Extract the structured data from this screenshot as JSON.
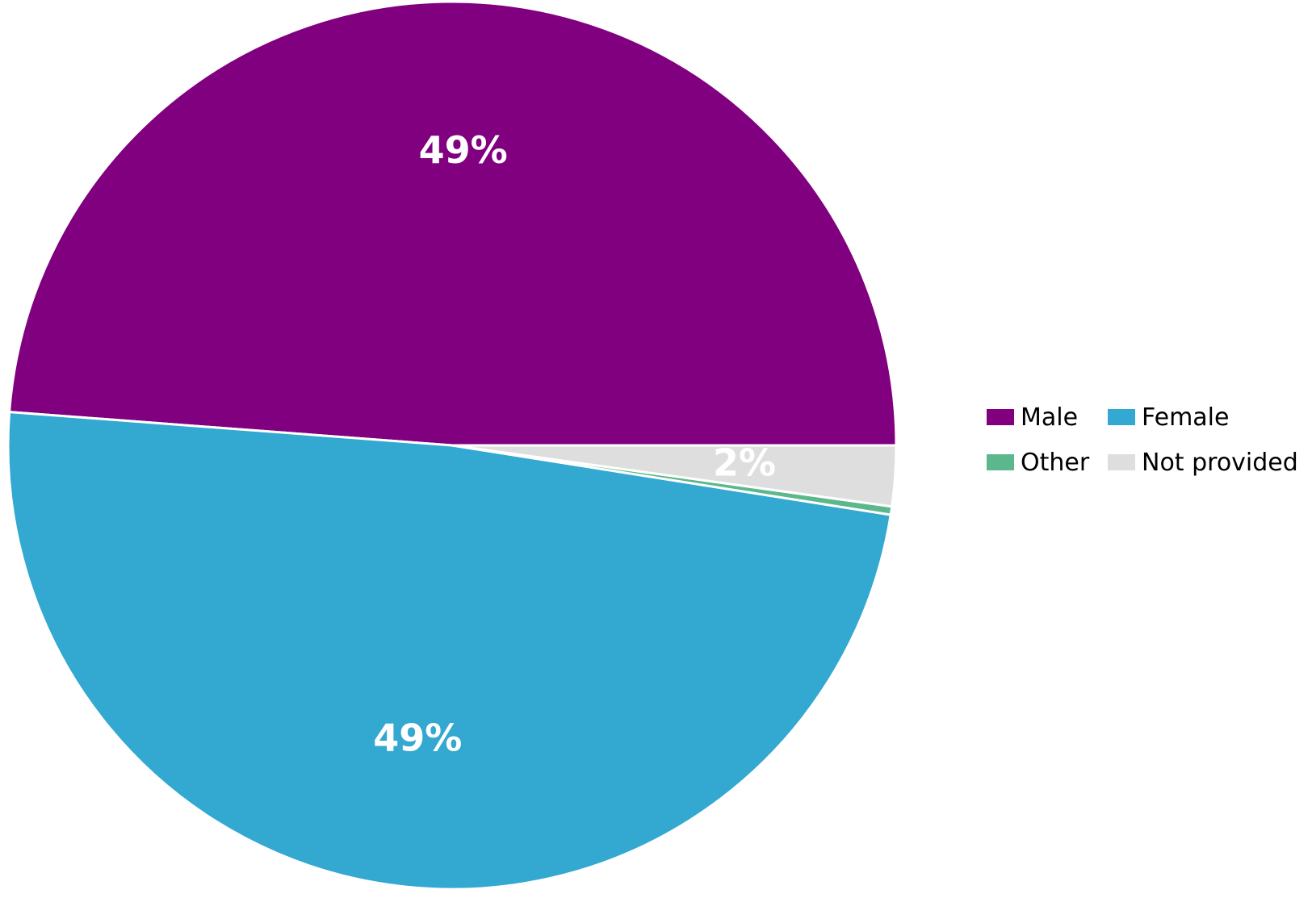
{
  "chart_data": {
    "type": "pie",
    "categories": [
      "Male",
      "Female",
      "Other",
      "Not provided"
    ],
    "values": [
      48.8,
      48.7,
      0.3,
      2.2
    ],
    "data_labels": [
      "49%",
      "49%",
      "",
      "2%"
    ],
    "colors": [
      "#800080",
      "#33A8D1",
      "#5CB88C",
      "#DEDEDE"
    ],
    "title": "",
    "legend_position": "right",
    "start_angle_deg": 0,
    "direction": "counterclockwise"
  },
  "legend": {
    "items": [
      {
        "label": "Male",
        "color": "#800080"
      },
      {
        "label": "Female",
        "color": "#33A8D1"
      },
      {
        "label": "Other",
        "color": "#5CB88C"
      },
      {
        "label": "Not provided",
        "color": "#DEDEDE"
      }
    ]
  }
}
